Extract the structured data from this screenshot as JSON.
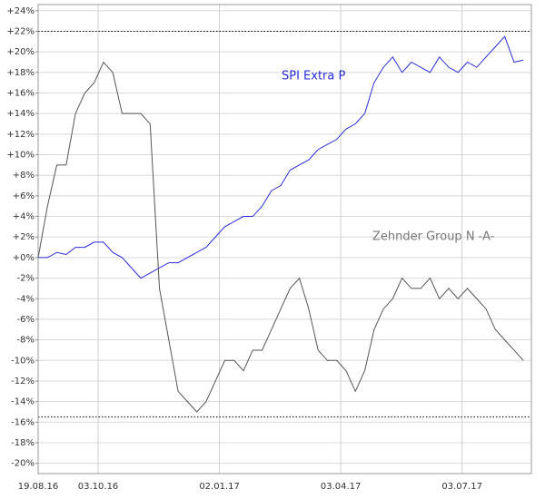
{
  "chart_data": {
    "type": "line",
    "x": [
      "19.08.16",
      "26.08.16",
      "02.09.16",
      "09.09.16",
      "16.09.16",
      "23.09.16",
      "30.09.16",
      "07.10.16",
      "14.10.16",
      "21.10.16",
      "28.10.16",
      "04.11.16",
      "11.11.16",
      "18.11.16",
      "25.11.16",
      "02.12.16",
      "09.12.16",
      "16.12.16",
      "23.12.16",
      "30.12.16",
      "06.01.17",
      "13.01.17",
      "20.01.17",
      "27.01.17",
      "03.02.17",
      "10.02.17",
      "17.02.17",
      "24.02.17",
      "03.03.17",
      "10.03.17",
      "17.03.17",
      "24.03.17",
      "31.03.17",
      "07.04.17",
      "14.04.17",
      "21.04.17",
      "28.04.17",
      "05.05.17",
      "12.05.17",
      "19.05.17",
      "26.05.17",
      "02.06.17",
      "09.06.17",
      "16.06.17",
      "23.06.17",
      "30.06.17",
      "07.07.17",
      "14.07.17",
      "21.07.17",
      "28.07.17",
      "04.08.17",
      "11.08.17",
      "18.08.17"
    ],
    "series": [
      {
        "name": "SPI Extra P",
        "color": "#2b2bdc",
        "values": [
          0,
          0,
          0.5,
          0.3,
          1,
          1,
          1.5,
          1.5,
          0.5,
          0,
          -1,
          -2,
          -1.5,
          -1,
          -0.5,
          -0.5,
          0,
          0.5,
          1,
          2,
          3,
          3.5,
          4,
          4,
          5,
          6.5,
          7,
          8.5,
          9,
          9.5,
          10.5,
          11,
          11.5,
          12.5,
          13,
          14,
          17,
          18.5,
          19.5,
          18,
          19,
          18.5,
          18,
          19.5,
          18.5,
          18,
          19,
          18.5,
          19.5,
          20.5,
          21.5,
          19,
          19.2
        ]
      },
      {
        "name": "Zehnder Group N -A-",
        "color": "#555555",
        "label_color": "#777777",
        "values": [
          0,
          5,
          9,
          9,
          14,
          16,
          17,
          19,
          18,
          14,
          14,
          14,
          13,
          -3,
          -8,
          -13,
          -14,
          -15,
          -14,
          -12,
          -10,
          -10,
          -11,
          -9,
          -9,
          -7,
          -5,
          -3,
          -2,
          -5,
          -9,
          -10,
          -10,
          -11,
          -13,
          -11,
          -7,
          -5,
          -4,
          -2,
          -3,
          -3,
          -2,
          -4,
          -3,
          -4,
          -3,
          -4,
          -5,
          -7,
          -8,
          -9,
          -10
        ]
      }
    ],
    "xlim": [
      "19.08.16",
      "24.08.17"
    ],
    "xticks": [
      "19.08.16",
      "03.10.16",
      "02.01.17",
      "03.04.17",
      "03.07.17"
    ],
    "ylim": [
      -21,
      24.6
    ],
    "yticks": [
      {
        "value": 24,
        "label": "+24%"
      },
      {
        "value": 22,
        "label": "+22%"
      },
      {
        "value": 20,
        "label": "+20%"
      },
      {
        "value": 18,
        "label": "+18%"
      },
      {
        "value": 16,
        "label": "+16%"
      },
      {
        "value": 14,
        "label": "+14%"
      },
      {
        "value": 12,
        "label": "+12%"
      },
      {
        "value": 10,
        "label": "+10%"
      },
      {
        "value": 8,
        "label": "+8%"
      },
      {
        "value": 6,
        "label": "+6%"
      },
      {
        "value": 4,
        "label": "+4%"
      },
      {
        "value": 2,
        "label": "+2%"
      },
      {
        "value": 0,
        "label": "+0%"
      },
      {
        "value": -2,
        "label": "-2%"
      },
      {
        "value": -4,
        "label": "-4%"
      },
      {
        "value": -6,
        "label": "-6%"
      },
      {
        "value": -8,
        "label": "-8%"
      },
      {
        "value": -10,
        "label": "-10%"
      },
      {
        "value": -12,
        "label": "-12%"
      },
      {
        "value": -14,
        "label": "-14%"
      },
      {
        "value": -16,
        "label": "-16%"
      },
      {
        "value": -18,
        "label": "-18%"
      },
      {
        "value": -20,
        "label": "-20%"
      }
    ],
    "hlines": [
      22,
      -15.5
    ],
    "grid": true
  }
}
